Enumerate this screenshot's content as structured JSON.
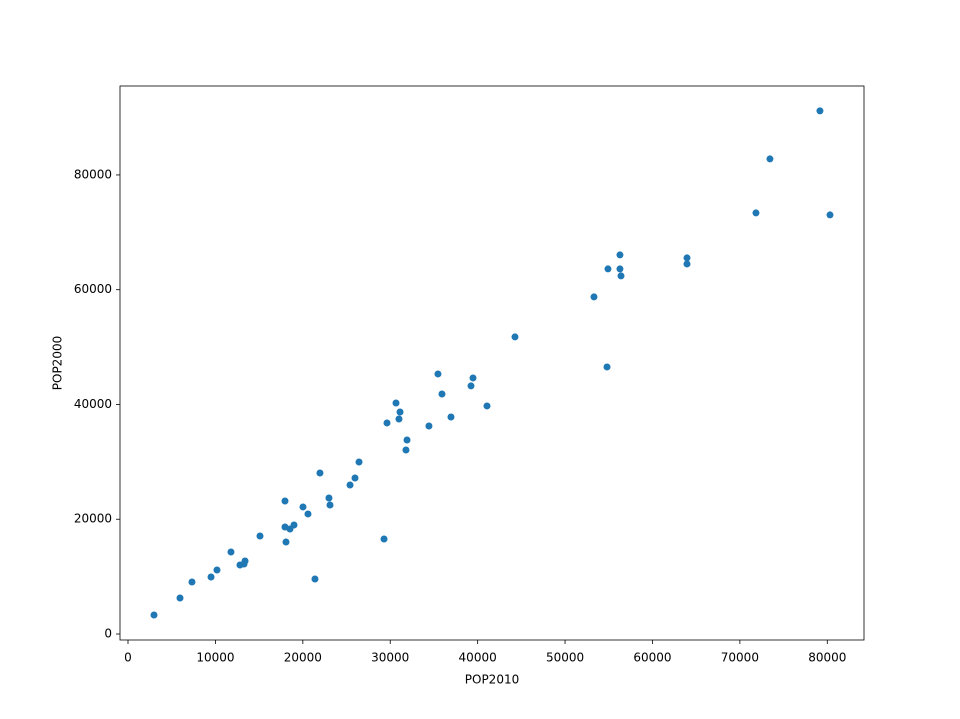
{
  "chart_data": {
    "type": "scatter",
    "x_label": "POP2010",
    "y_label": "POP2000",
    "color": "#1f77b4",
    "x": [
      2975,
      5950,
      7320,
      9500,
      10180,
      11780,
      12810,
      13390,
      13270,
      15100,
      17960,
      17960,
      18530,
      18075,
      18990,
      20020,
      20590,
      21390,
      21960,
      22990,
      23110,
      25400,
      25970,
      26430,
      29290,
      29630,
      30660,
      31120,
      31000,
      31920,
      31800,
      34430,
      35460,
      35920,
      36950,
      39240,
      39470,
      41070,
      44270,
      53310,
      54800,
      54910,
      56280,
      56280,
      56400,
      63950,
      63950,
      71840,
      73440,
      79160,
      80310
    ],
    "y": [
      3312,
      6275,
      9060,
      9935,
      11155,
      14290,
      12030,
      12720,
      12200,
      17080,
      23180,
      18650,
      18300,
      16035,
      19000,
      22140,
      20920,
      9590,
      28060,
      23700,
      22485,
      25970,
      27190,
      29980,
      16560,
      36780,
      40260,
      38690,
      37470,
      33810,
      32070,
      36250,
      45320,
      41830,
      37820,
      43230,
      44620,
      39740,
      51770,
      58740,
      46540,
      63620,
      66060,
      63620,
      62400,
      65540,
      64490,
      73380,
      82790,
      91160,
      73030
    ],
    "xlim": [
      -915,
      84200
    ],
    "ylim": [
      -1046,
      95500
    ],
    "xticks": [
      0,
      10000,
      20000,
      30000,
      40000,
      50000,
      60000,
      70000,
      80000
    ],
    "yticks": [
      0,
      20000,
      40000,
      60000,
      80000
    ],
    "grid": false
  }
}
